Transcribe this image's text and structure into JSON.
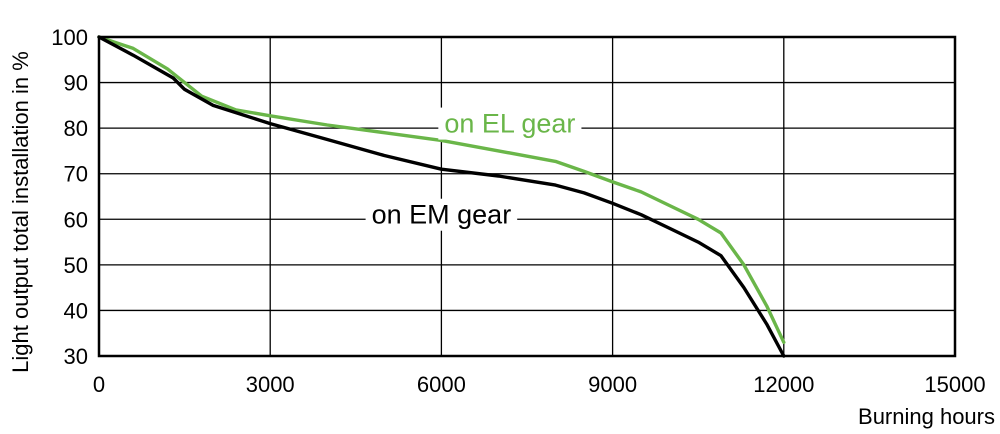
{
  "chart_data": {
    "type": "line",
    "title": "",
    "xlabel": "Burning hours",
    "ylabel": "Light output total installation in %",
    "xlim": [
      0,
      15000
    ],
    "ylim": [
      30,
      100
    ],
    "xticks": [
      "0",
      "3000",
      "6000",
      "9000",
      "12000",
      "15000"
    ],
    "yticks": [
      "30",
      "40",
      "50",
      "60",
      "70",
      "80",
      "90",
      "100"
    ],
    "grid": true,
    "legend": "inline labels",
    "series": [
      {
        "name": "on EL gear",
        "color": "#6ab649",
        "x": [
          0,
          600,
          1200,
          1800,
          2400,
          3000,
          4000,
          5000,
          6000,
          7000,
          8000,
          8500,
          9000,
          9500,
          10000,
          10500,
          10900,
          11300,
          11700,
          12000
        ],
        "y": [
          100,
          97.5,
          93,
          87,
          84,
          82.7,
          80.7,
          79,
          77.3,
          75,
          72.7,
          70.5,
          68.2,
          66,
          63,
          60,
          57,
          50,
          41,
          33
        ]
      },
      {
        "name": "on EM gear",
        "color": "#000000",
        "x": [
          0,
          600,
          1300,
          1500,
          2000,
          2500,
          3000,
          4000,
          5000,
          6000,
          7000,
          8000,
          8500,
          9000,
          9500,
          10000,
          10500,
          10900,
          11300,
          11700,
          12000
        ],
        "y": [
          100,
          96,
          91,
          88.5,
          85,
          83,
          81,
          77.5,
          74,
          71,
          69.5,
          67.5,
          65.8,
          63.5,
          61,
          58,
          55,
          52,
          45,
          37,
          30
        ]
      }
    ],
    "annotations": [
      {
        "text": "on EL gear",
        "series": 0,
        "x": 7200,
        "y": 81
      },
      {
        "text": "on EM gear",
        "series": 1,
        "x": 6000,
        "y": 61
      }
    ]
  }
}
